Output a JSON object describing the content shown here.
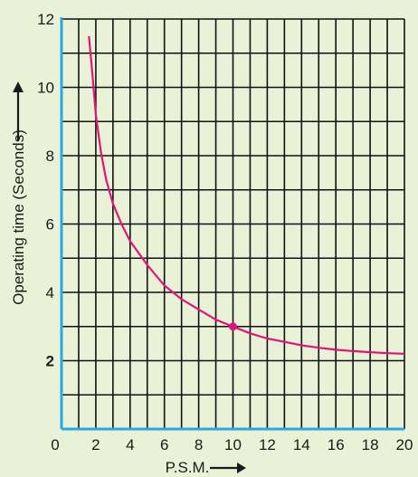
{
  "chart_data": {
    "type": "line",
    "xlabel": "P.S.M.",
    "ylabel": "Operating time (Seconds)",
    "xlim": [
      0,
      20
    ],
    "ylim": [
      0,
      12
    ],
    "x_ticks": [
      "0",
      "2",
      "4",
      "6",
      "8",
      "10",
      "12",
      "14",
      "16",
      "18",
      "20"
    ],
    "y_ticks": [
      "2",
      "4",
      "6",
      "8",
      "10",
      "12"
    ],
    "grid": true,
    "series": [
      {
        "x": [
          1.6,
          1.8,
          2.0,
          2.3,
          2.6,
          3.0,
          3.5,
          4.0,
          5.0,
          6.0,
          7.0,
          8.0,
          9.0,
          10.0,
          11.0,
          12.0,
          13.0,
          14.0,
          15.0,
          16.0,
          17.0,
          18.0,
          19.0,
          20.0
        ],
        "y": [
          11.5,
          10.4,
          9.2,
          8.1,
          7.3,
          6.6,
          6.0,
          5.5,
          4.8,
          4.2,
          3.8,
          3.5,
          3.2,
          3.0,
          2.8,
          2.65,
          2.55,
          2.45,
          2.38,
          2.32,
          2.28,
          2.25,
          2.22,
          2.2
        ]
      }
    ],
    "highlight_point": {
      "x": 10,
      "y": 3
    },
    "colors": {
      "background": "#e9f2d7",
      "grid": "#111111",
      "axis": "#29a9e1",
      "curve": "#e0157a",
      "point": "#e0157a"
    }
  }
}
